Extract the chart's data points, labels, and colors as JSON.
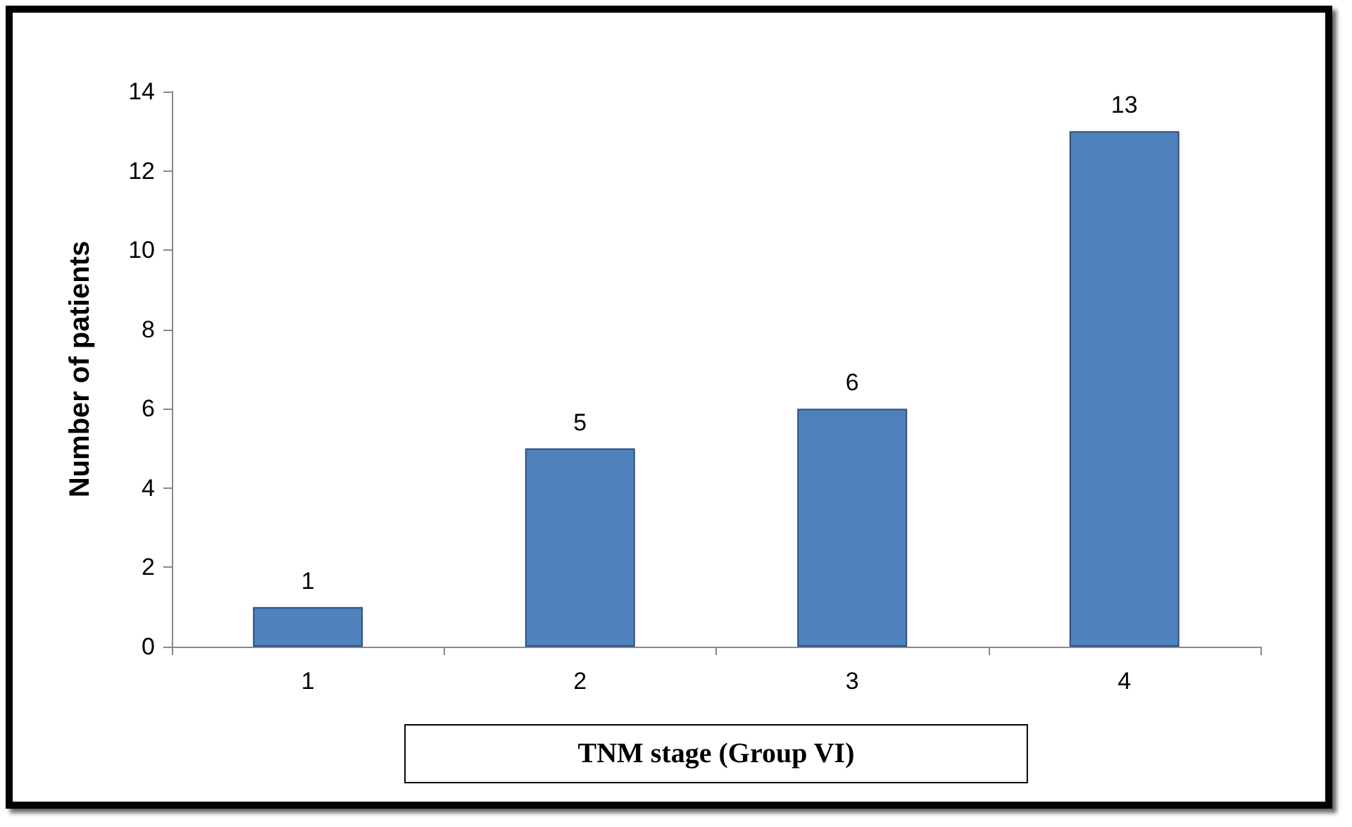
{
  "chart_data": {
    "type": "bar",
    "xlabel": "TNM stage (Group VI)",
    "ylabel": "Number of patients",
    "categories": [
      "1",
      "2",
      "3",
      "4"
    ],
    "values": [
      1,
      5,
      6,
      13
    ],
    "color": "#4f81bd",
    "ylim": [
      0,
      14
    ],
    "yticks": [
      0,
      2,
      4,
      6,
      8,
      10,
      12,
      14
    ],
    "grid": false,
    "data_labels": true
  }
}
